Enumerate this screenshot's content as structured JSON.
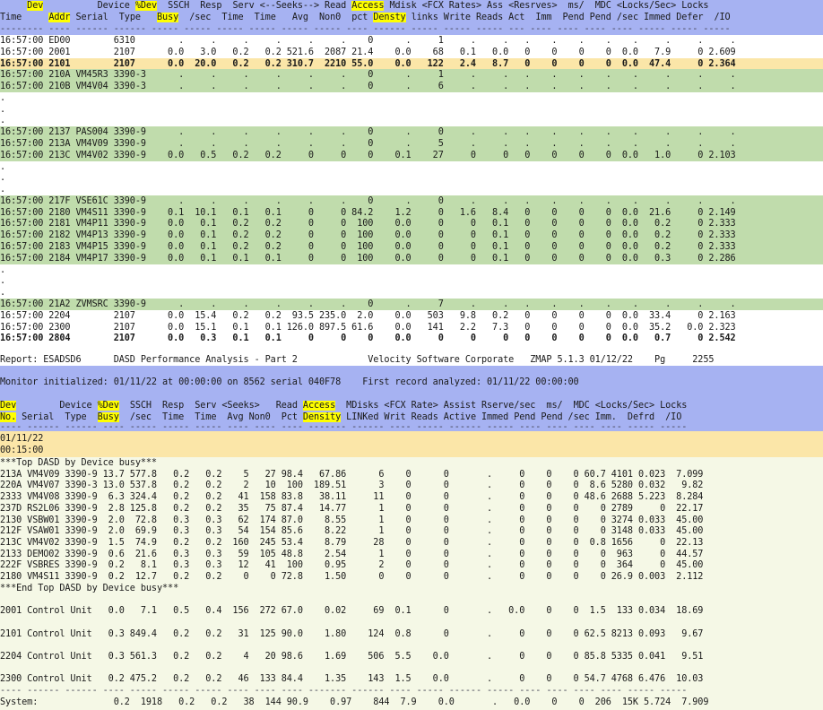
{
  "colors": {
    "header_bg": "#a6b2f2",
    "selected_row_bg": "#fbe6a8",
    "group_row_bg": "#c0dcac",
    "part2_body_bg": "#f5f8e6",
    "column_highlight": "#ffff00"
  },
  "part1": {
    "header": [
      [
        {
          "t": "     "
        },
        {
          "t": "Dev",
          "hl": true
        },
        {
          "t": "          Device "
        },
        {
          "t": "%Dev",
          "hl": true
        },
        {
          "t": "  SSCH  Resp  Serv <--Seeks--> Read "
        },
        {
          "t": "Access",
          "hl": true
        },
        {
          "t": " Mdisk <FCX Rates> Ass <Resrves>  ms/  MDC <Locks/Sec> Locks"
        }
      ],
      [
        {
          "t": "Time     "
        },
        {
          "t": "Addr",
          "hl": true
        },
        {
          "t": " Serial  Type   "
        },
        {
          "t": "Busy",
          "hl": true
        },
        {
          "t": "  /sec  Time  Time   Avg  Non0  pct "
        },
        {
          "t": "Densty",
          "hl": true
        },
        {
          "t": " links Write Reads Act  Imm  Pend Pend /sec Immed Defer  /IO"
        }
      ],
      [
        {
          "t": "-------- ---- ------ ------ ----- ----- ----- ----- ----- ----- ---- ------ ----- ----- ----- --- ---- ---- ---- ---- ----- ----- -----"
        }
      ]
    ],
    "rows": [
      {
        "line": "16:57:00 ED00        6310        .     .     .     .     .     .    0      .     1     .     .   .    .    .    .    .     .     .     .",
        "style": "wht",
        "bold": false
      },
      {
        "line": "16:57:00 2001        2107      0.0   3.0   0.2   0.2 521.6  2087 21.4    0.0    68   0.1   0.0   0    0    0    0  0.0   7.9     0 2.609",
        "style": "wht",
        "bold": false
      },
      {
        "line": "16:57:00 2101        2107      0.0  20.0   0.2   0.2 310.7  2210 55.0    0.0   122   2.4   8.7   0    0    0    0  0.0  47.4     0 2.364",
        "style": "sel",
        "bold": true
      },
      {
        "line": "16:57:00 210A VM45R3 3390-3      .     .     .     .     .     .    0      .     1     .     .   .    .    .    .    .     .     .     .",
        "style": "grn",
        "bold": false
      },
      {
        "line": "16:57:00 210B VM4V04 3390-3      .     .     .     .     .     .    0      .     6     .     .   .    .    .    .    .     .     .     .",
        "style": "grn",
        "bold": false
      },
      {
        "line": ".",
        "style": "wht",
        "bold": false
      },
      {
        "line": ".",
        "style": "wht",
        "bold": false
      },
      {
        "line": ".",
        "style": "wht",
        "bold": false
      },
      {
        "line": "16:57:00 2137 PAS004 3390-9      .     .     .     .     .     .    0      .     0     .     .   .    .    .    .    .     .     .     .",
        "style": "grn",
        "bold": false
      },
      {
        "line": "16:57:00 213A VM4V09 3390-9      .     .     .     .     .     .    0      .     5     .     .   .    .    .    .    .     .     .     .",
        "style": "grn",
        "bold": false
      },
      {
        "line": "16:57:00 213C VM4V02 3390-9    0.0   0.5   0.2   0.2     0     0    0    0.1    27     0     0   0    0    0    0  0.0   1.0     0 2.103",
        "style": "grn",
        "bold": false
      },
      {
        "line": ".",
        "style": "wht",
        "bold": false
      },
      {
        "line": ".",
        "style": "wht",
        "bold": false
      },
      {
        "line": ".",
        "style": "wht",
        "bold": false
      },
      {
        "line": "16:57:00 217F VSE61C 3390-9      .     .     .     .     .     .    0      .     0     .     .   .    .    .    .    .     .     .     .",
        "style": "grn",
        "bold": false
      },
      {
        "line": "16:57:00 2180 VM4S11 3390-9    0.1  10.1   0.1   0.1     0     0 84.2    1.2     0   1.6   8.4   0    0    0    0  0.0  21.6     0 2.149",
        "style": "grn",
        "bold": false
      },
      {
        "line": "16:57:00 2181 VM4P11 3390-9    0.0   0.1   0.2   0.2     0     0  100    0.0     0     0   0.1   0    0    0    0  0.0   0.2     0 2.333",
        "style": "grn",
        "bold": false
      },
      {
        "line": "16:57:00 2182 VM4P13 3390-9    0.0   0.1   0.2   0.2     0     0  100    0.0     0     0   0.1   0    0    0    0  0.0   0.2     0 2.333",
        "style": "grn",
        "bold": false
      },
      {
        "line": "16:57:00 2183 VM4P15 3390-9    0.0   0.1   0.2   0.2     0     0  100    0.0     0     0   0.1   0    0    0    0  0.0   0.2     0 2.333",
        "style": "grn",
        "bold": false
      },
      {
        "line": "16:57:00 2184 VM4P17 3390-9    0.0   0.1   0.1   0.1     0     0  100    0.0     0     0   0.1   0    0    0    0  0.0   0.3     0 2.286",
        "style": "grn",
        "bold": false
      },
      {
        "line": ".",
        "style": "wht",
        "bold": false
      },
      {
        "line": ".",
        "style": "wht",
        "bold": false
      },
      {
        "line": ".",
        "style": "wht",
        "bold": false
      },
      {
        "line": "16:57:00 21A2 ZVMSRC 3390-9      .     .     .     .     .     .    0      .     7     .     .   .    .    .    .    .     .     .     .",
        "style": "grn",
        "bold": false
      },
      {
        "line": "16:57:00 2204        2107      0.0  15.4   0.2   0.2  93.5 235.0  2.0    0.0   503   9.8   0.2   0    0    0    0  0.0  33.4     0 2.163",
        "style": "wht",
        "bold": false
      },
      {
        "line": "16:57:00 2300        2107      0.0  15.1   0.1   0.1 126.0 897.5 61.6    0.0   141   2.2   7.3   0    0    0    0  0.0  35.2   0.0 2.323",
        "style": "wht",
        "bold": false
      },
      {
        "line": "16:57:00 2804        2107      0.0   0.3   0.1   0.1     0     0    0    0.0     0     0     0   0    0    0    0  0.0   0.7     0 2.542",
        "style": "wht",
        "bold": true
      }
    ]
  },
  "report_line": "Report: ESADSD6      DASD Performance Analysis - Part 2             Velocity Software Corporate   ZMAP 5.1.3 01/12/22    Pg     2255",
  "part2": {
    "monitor_line": "Monitor initialized: 01/11/22 at 00:00:00 on 8562 serial 040F78    First record analyzed: 01/11/22 00:00:00",
    "header": [
      [
        {
          "t": "Dev",
          "hl": true
        },
        {
          "t": "        Device "
        },
        {
          "t": "%Dev",
          "hl": true
        },
        {
          "t": "  SSCH  Resp  Serv <Seeks>   Read "
        },
        {
          "t": "Access",
          "hl": true
        },
        {
          "t": "  MDisks <FCX Rate> Assist Rserve/sec  ms/  MDC <Locks/Sec> Locks"
        }
      ],
      [
        {
          "t": "No.",
          "hl": true
        },
        {
          "t": " Serial  Type  "
        },
        {
          "t": "Busy",
          "hl": true
        },
        {
          "t": "  /sec  Time  Time  Avg Non0  Pct "
        },
        {
          "t": "Density",
          "hl": true
        },
        {
          "t": " LINKed Writ Reads Active Immed Pend Pend /sec Imm.  Defrd  /IO"
        }
      ],
      [
        {
          "t": "---- ------ ------ ---- ----- ----- ----- ---- ---- ---- ------- ------ ---- ----- ------ ----- ---- ---- ---- ---- ----- -----"
        }
      ]
    ],
    "date_lines": [
      "01/11/22",
      "00:15:00"
    ],
    "rows": [
      "***Top DASD by Device busy***",
      "213A VM4V09 3390-9 13.7 577.8   0.2   0.2    5   27 98.4   67.86      6    0      0       .     0    0    0 60.7 4101 0.023  7.099",
      "220A VM4V07 3390-3 13.0 537.8   0.2   0.2    2   10  100  189.51      3    0      0       .     0    0    0  8.6 5280 0.032   9.82",
      "2333 VM4V08 3390-9  6.3 324.4   0.2   0.2   41  158 83.8   38.11     11    0      0       .     0    0    0 48.6 2688 5.223  8.284",
      "237D RS2L06 3390-9  2.8 125.8   0.2   0.2   35   75 87.4   14.77      1    0      0       .     0    0    0    0 2789     0  22.17",
      "2130 VSBW01 3390-9  2.0  72.8   0.3   0.3   62  174 87.0    8.55      1    0      0       .     0    0    0    0 3274 0.033  45.00",
      "212F VSAW01 3390-9  2.0  69.9   0.3   0.3   54  154 85.6    8.22      1    0      0       .     0    0    0    0 3148 0.033  45.00",
      "213C VM4V02 3390-9  1.5  74.9   0.2   0.2  160  245 53.4    8.79     28    0      0       .     0    0    0  0.8 1656     0  22.13",
      "2133 DEMO02 3390-9  0.6  21.6   0.3   0.3   59  105 48.8    2.54      1    0      0       .     0    0    0    0  963     0  44.57",
      "222F VSBRES 3390-9  0.2   8.1   0.3   0.3   12   41  100    0.95      2    0      0       .     0    0    0    0  364     0  45.00",
      "2180 VM4S11 3390-9  0.2  12.7   0.2   0.2    0    0 72.8    1.50      0    0      0       .     0    0    0    0 26.9 0.003  2.112",
      "***End Top DASD by Device busy***"
    ],
    "cu_rows": [
      "2001 Control Unit   0.0   7.1   0.5   0.4  156  272 67.0    0.02     69  0.1      0       .   0.0    0    0  1.5  133 0.034  18.69",
      "2101 Control Unit   0.3 849.4   0.2   0.2   31  125 90.0    1.80    124  0.8      0       .     0    0    0 62.5 8213 0.093   9.67",
      "2204 Control Unit   0.3 561.3   0.2   0.2    4   20 98.6    1.69    506  5.5    0.0       .     0    0    0 85.8 5335 0.041   9.51",
      "2300 Control Unit   0.2 475.2   0.2   0.2   46  133 84.4    1.35    143  1.5    0.0       .     0    0    0 54.7 4768 6.476  10.03"
    ],
    "system_dash": "---- ------ ------ ---- ----- ----- ----- ---- ---- ---- ------- ------ ---- ----- ------ ----- ---- ---- ---- ---- ----- -----",
    "system_line": "System:              0.2  1918   0.2   0.2   38  144 90.9    0.97    844  7.9    0.0       .   0.0    0    0  206  15K 5.724  7.909"
  }
}
